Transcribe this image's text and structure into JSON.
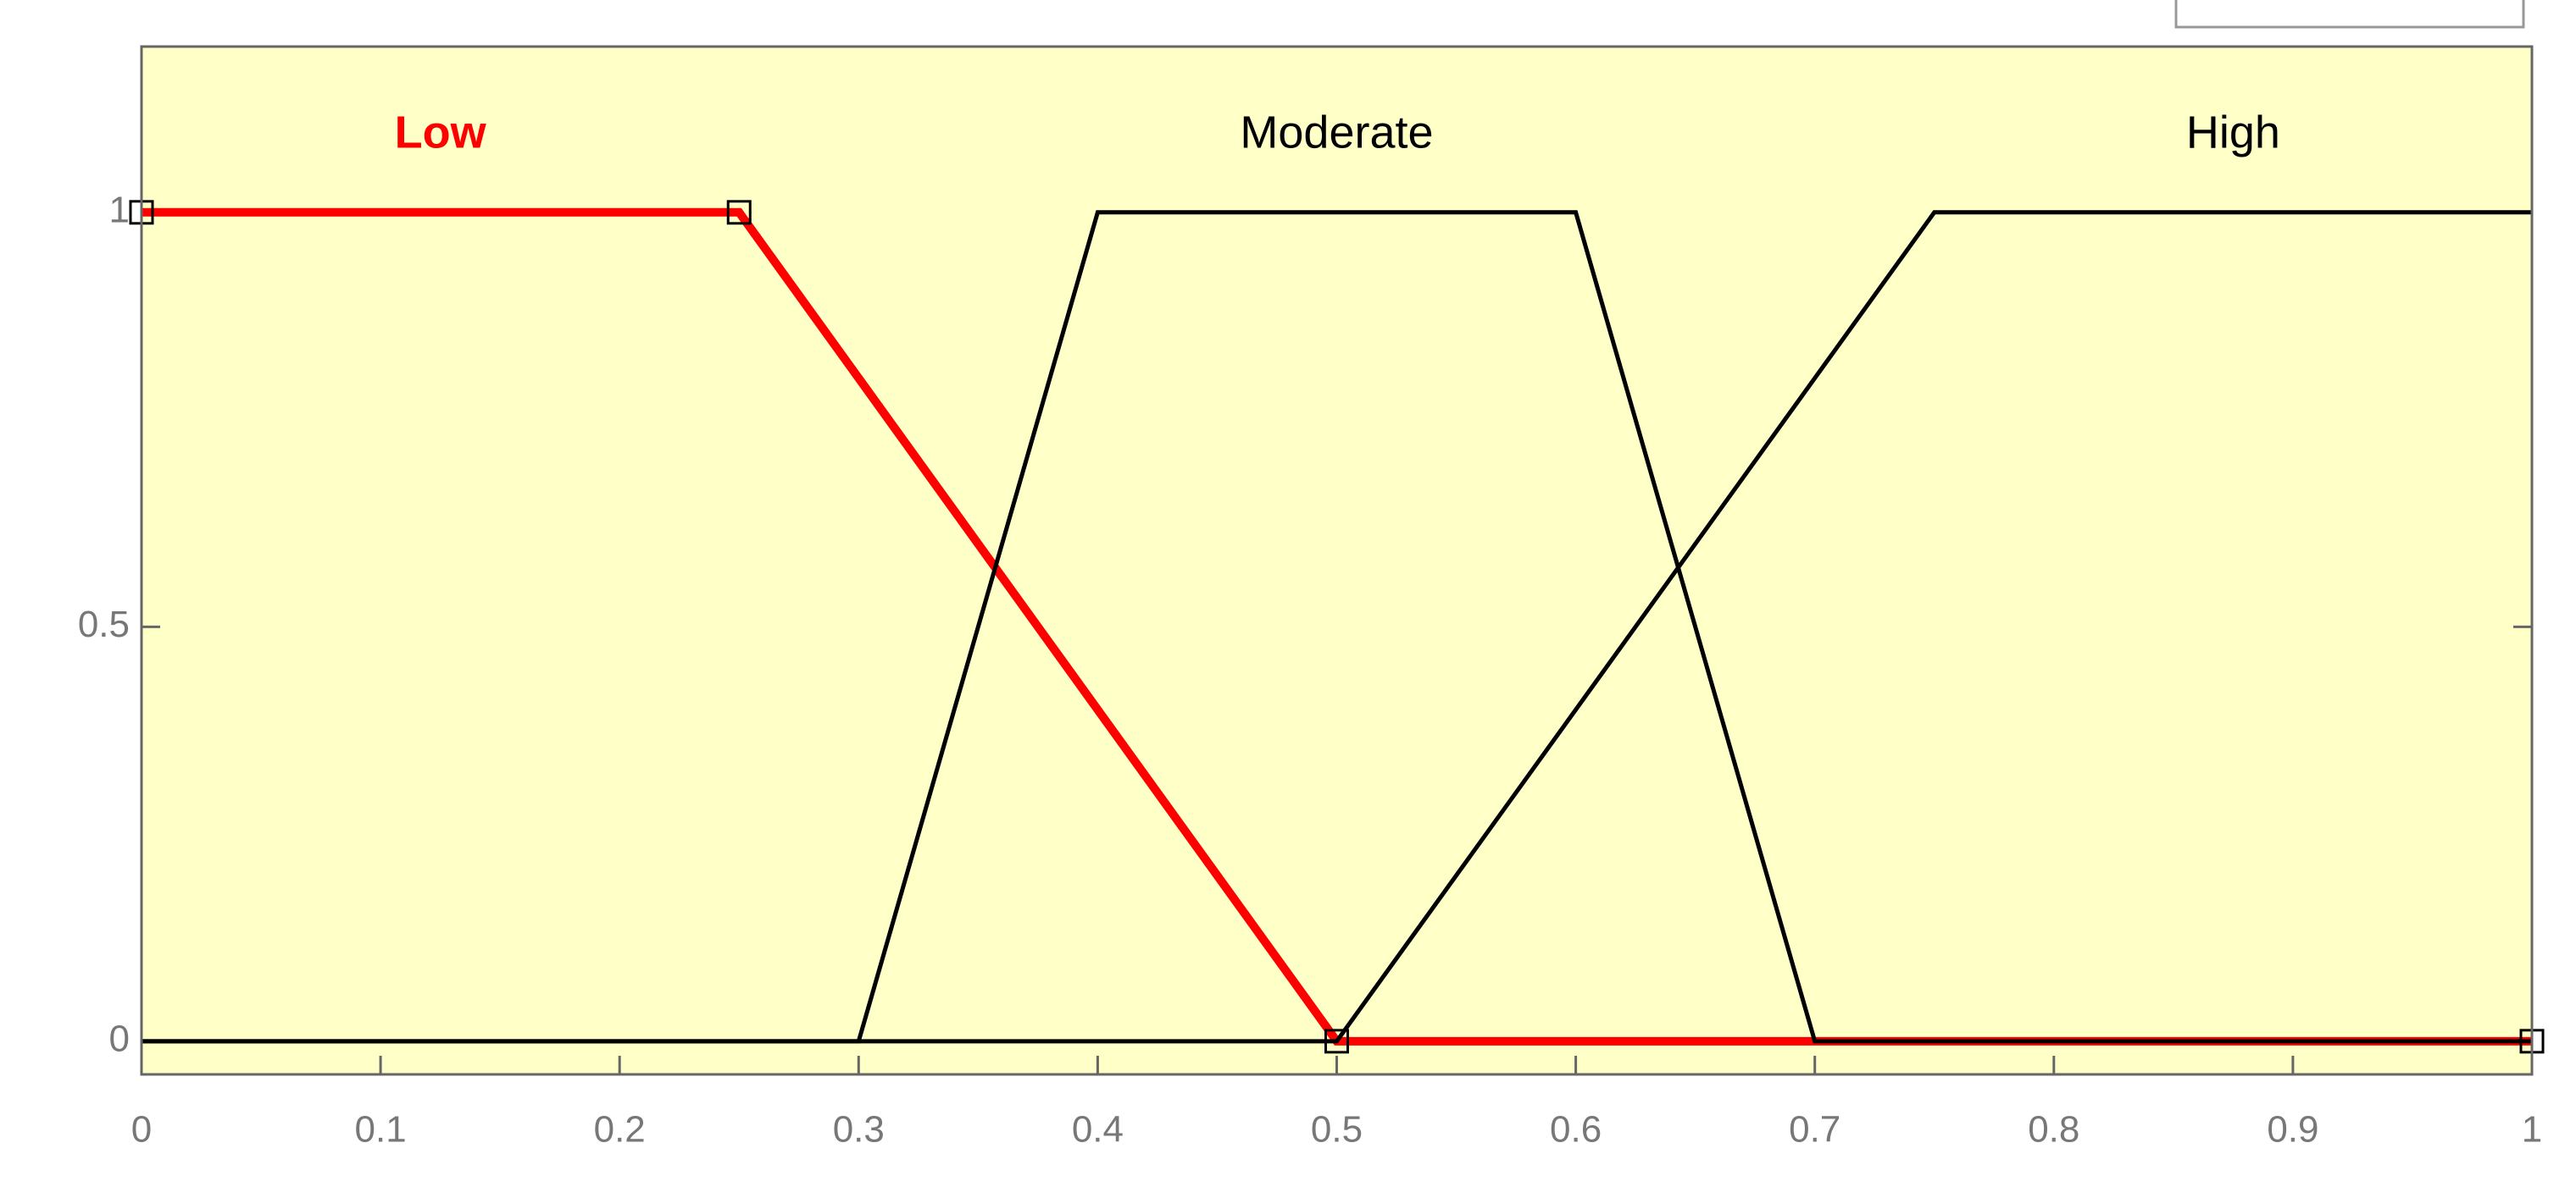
{
  "chart_data": {
    "type": "line",
    "series": [
      {
        "name": "Low",
        "color": "#ff0000",
        "x": [
          0,
          0.25,
          0.5,
          1
        ],
        "values": [
          1,
          1,
          0,
          0
        ],
        "marker": "square",
        "line_width": 10
      },
      {
        "name": "Moderate",
        "color": "#000000",
        "x": [
          0,
          0.3,
          0.4,
          0.6,
          0.7,
          1
        ],
        "values": [
          0,
          0,
          1,
          1,
          0,
          0
        ],
        "line_width": 5
      },
      {
        "name": "High",
        "color": "#000000",
        "x": [
          0,
          0.5,
          0.75,
          1
        ],
        "values": [
          0,
          0,
          1,
          1
        ],
        "line_width": 5
      }
    ],
    "xlim": [
      0,
      1
    ],
    "xticks": [
      0,
      0.1,
      0.2,
      0.3,
      0.4,
      0.5,
      0.6,
      0.7,
      0.8,
      0.9,
      1
    ],
    "ylim": [
      -0.04,
      1.2
    ],
    "yticks": [
      0,
      0.5,
      1
    ],
    "background": "#ffffc8"
  }
}
